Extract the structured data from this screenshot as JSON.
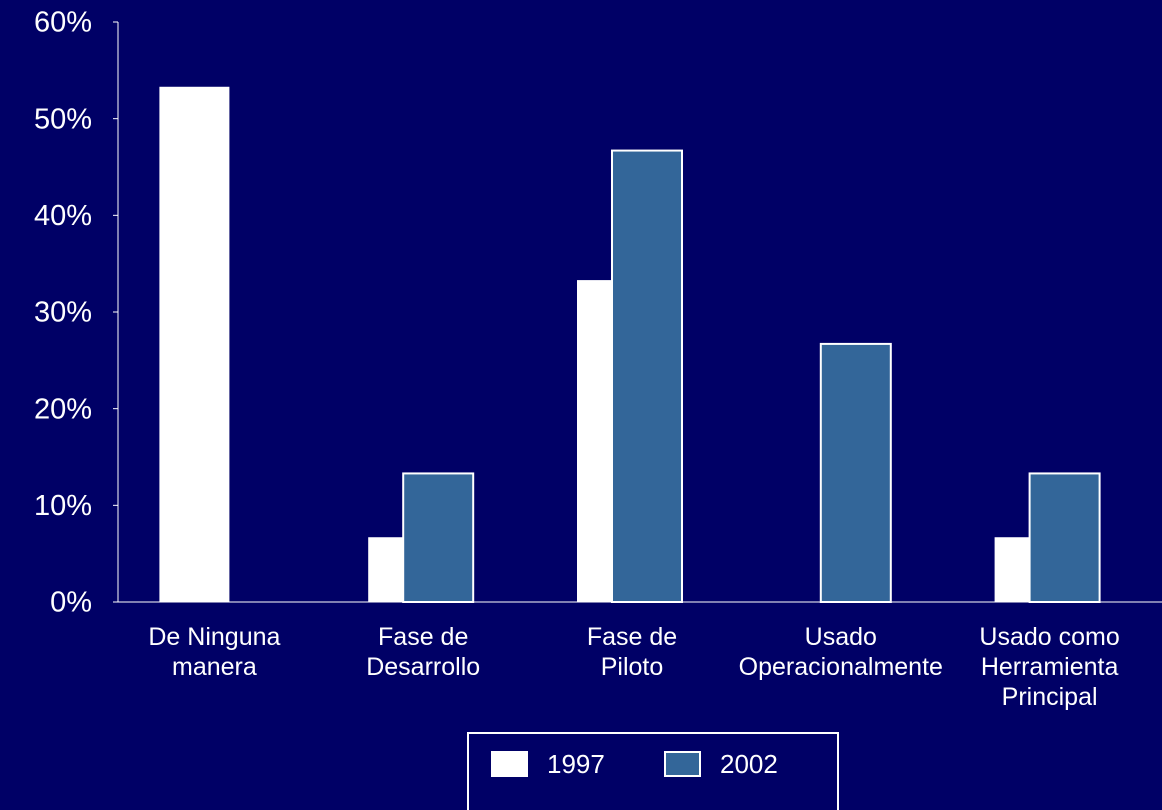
{
  "chart_data": {
    "type": "bar",
    "categories": [
      "De Ninguna\nmanera",
      "Fase de\nDesarrollo",
      "Fase de\nPiloto",
      "Usado\nOperacionalmente",
      "Usado como\nHerramienta\nPrincipal"
    ],
    "series": [
      {
        "name": "1997",
        "color": "#ffffff",
        "values": [
          53.3,
          6.7,
          33.3,
          0,
          6.7
        ]
      },
      {
        "name": "2002",
        "color": "#336699",
        "values": [
          0,
          13.3,
          46.7,
          26.7,
          13.3
        ]
      }
    ],
    "ylim": [
      0,
      60
    ],
    "yticks": [
      {
        "value": 0,
        "label": "0%"
      },
      {
        "value": 10,
        "label": "10%"
      },
      {
        "value": 20,
        "label": "20%"
      },
      {
        "value": 30,
        "label": "30%"
      },
      {
        "value": 40,
        "label": "40%"
      },
      {
        "value": 50,
        "label": "50%"
      },
      {
        "value": 60,
        "label": "60%"
      }
    ],
    "legend": "bottom"
  }
}
